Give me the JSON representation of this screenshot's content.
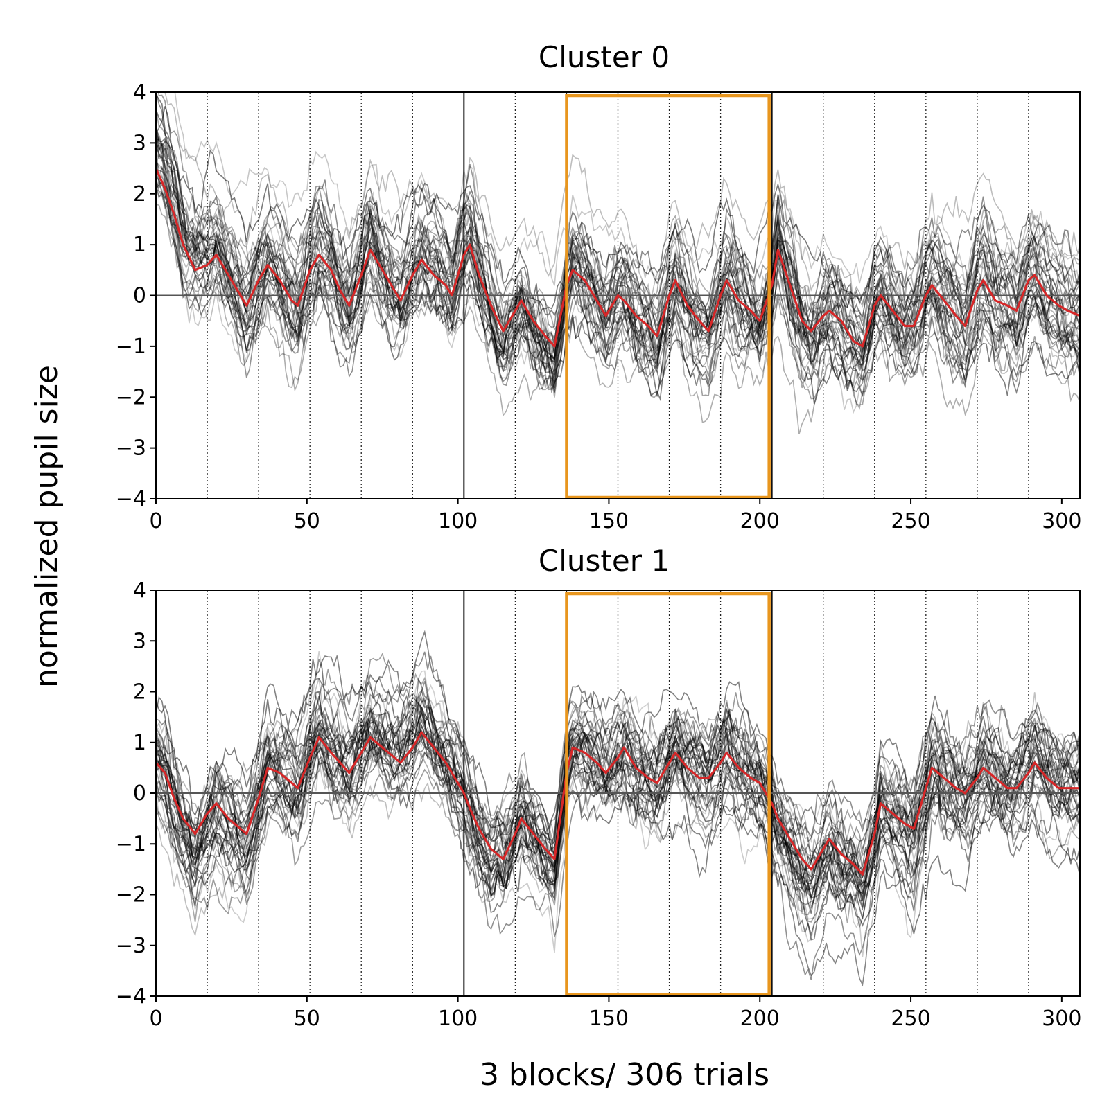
{
  "figure": {
    "ylabel": "normalized pupil size",
    "xlabel": "3 blocks/ 306 trials"
  },
  "colors": {
    "mean_line": "#d62728",
    "trial_lines": "#000000",
    "highlight_box": "#e8961e",
    "zero_line": "#555555"
  },
  "chart_data": [
    {
      "type": "line",
      "title": "Cluster 0",
      "xlim": [
        0,
        306
      ],
      "ylim": [
        -4,
        4
      ],
      "xticks": [
        0,
        50,
        100,
        150,
        200,
        250,
        300
      ],
      "yticks": [
        4,
        3,
        2,
        1,
        0,
        -1,
        -2,
        -3,
        -4
      ],
      "reference_line_y": 0,
      "block_boundaries": [
        102,
        204
      ],
      "sub_block_boundaries": [
        17,
        34,
        51,
        68,
        85,
        119,
        136,
        153,
        170,
        187,
        221,
        238,
        255,
        272,
        289
      ],
      "highlight_range": [
        136,
        204
      ],
      "individual_trace_count": 40,
      "mean_series": {
        "x": [
          0,
          3,
          6,
          9,
          13,
          17,
          20,
          24,
          28,
          30,
          34,
          37,
          41,
          45,
          47,
          51,
          54,
          58,
          61,
          64,
          68,
          71,
          75,
          79,
          81,
          85,
          88,
          92,
          96,
          98,
          102,
          104,
          107,
          111,
          115,
          119,
          121,
          125,
          129,
          132,
          136,
          138,
          142,
          146,
          149,
          153,
          155,
          159,
          163,
          166,
          170,
          172,
          176,
          180,
          183,
          187,
          189,
          193,
          197,
          200,
          204,
          206,
          210,
          214,
          217,
          221,
          223,
          227,
          231,
          234,
          238,
          240,
          244,
          248,
          251,
          255,
          257,
          261,
          265,
          268,
          272,
          274,
          278,
          282,
          285,
          289,
          291,
          295,
          299,
          302,
          306
        ],
        "y": [
          2.5,
          2.1,
          1.6,
          1.0,
          0.5,
          0.6,
          0.8,
          0.4,
          0.0,
          -0.2,
          0.3,
          0.6,
          0.3,
          -0.1,
          -0.2,
          0.5,
          0.8,
          0.5,
          0.1,
          -0.2,
          0.4,
          0.9,
          0.5,
          0.1,
          -0.1,
          0.4,
          0.7,
          0.4,
          0.2,
          0.0,
          0.8,
          1.0,
          0.4,
          -0.2,
          -0.7,
          -0.3,
          -0.1,
          -0.5,
          -0.8,
          -1.0,
          0.2,
          0.5,
          0.3,
          -0.1,
          -0.4,
          0.0,
          -0.1,
          -0.4,
          -0.6,
          -0.8,
          0.0,
          0.3,
          -0.2,
          -0.5,
          -0.7,
          0.0,
          0.3,
          -0.1,
          -0.3,
          -0.5,
          0.2,
          0.9,
          0.2,
          -0.5,
          -0.7,
          -0.4,
          -0.3,
          -0.5,
          -0.9,
          -1.0,
          -0.2,
          0.0,
          -0.3,
          -0.6,
          -0.6,
          0.0,
          0.2,
          -0.1,
          -0.4,
          -0.6,
          0.1,
          0.3,
          -0.1,
          -0.2,
          -0.3,
          0.3,
          0.4,
          0.0,
          -0.2,
          -0.3,
          -0.4
        ]
      }
    },
    {
      "type": "line",
      "title": "Cluster 1",
      "xlim": [
        0,
        306
      ],
      "ylim": [
        -4,
        4
      ],
      "xticks": [
        0,
        50,
        100,
        150,
        200,
        250,
        300
      ],
      "yticks": [
        4,
        3,
        2,
        1,
        0,
        -1,
        -2,
        -3,
        -4
      ],
      "reference_line_y": 0,
      "block_boundaries": [
        102,
        204
      ],
      "sub_block_boundaries": [
        17,
        34,
        51,
        68,
        85,
        119,
        136,
        153,
        170,
        187,
        221,
        238,
        255,
        272,
        289
      ],
      "highlight_range": [
        136,
        204
      ],
      "individual_trace_count": 40,
      "mean_series": {
        "x": [
          0,
          3,
          6,
          9,
          13,
          17,
          20,
          24,
          28,
          30,
          34,
          37,
          41,
          45,
          47,
          51,
          54,
          58,
          61,
          64,
          68,
          71,
          75,
          79,
          81,
          85,
          88,
          92,
          96,
          98,
          102,
          104,
          107,
          111,
          115,
          119,
          121,
          125,
          129,
          132,
          136,
          138,
          142,
          146,
          149,
          153,
          155,
          159,
          163,
          166,
          170,
          172,
          176,
          180,
          183,
          187,
          189,
          193,
          197,
          200,
          204,
          206,
          210,
          214,
          217,
          221,
          223,
          227,
          231,
          234,
          238,
          240,
          244,
          248,
          251,
          255,
          257,
          261,
          265,
          268,
          272,
          274,
          278,
          282,
          285,
          289,
          291,
          295,
          299,
          302,
          306
        ],
        "y": [
          0.6,
          0.4,
          -0.1,
          -0.5,
          -0.8,
          -0.4,
          -0.2,
          -0.5,
          -0.7,
          -0.8,
          -0.1,
          0.5,
          0.4,
          0.2,
          0.1,
          0.7,
          1.1,
          0.8,
          0.6,
          0.4,
          0.8,
          1.1,
          0.9,
          0.7,
          0.6,
          0.9,
          1.2,
          0.9,
          0.6,
          0.4,
          0.0,
          -0.3,
          -0.7,
          -1.1,
          -1.3,
          -0.8,
          -0.5,
          -0.8,
          -1.1,
          -1.3,
          0.4,
          0.9,
          0.8,
          0.6,
          0.4,
          0.7,
          0.9,
          0.5,
          0.3,
          0.2,
          0.6,
          0.8,
          0.5,
          0.3,
          0.3,
          0.6,
          0.8,
          0.5,
          0.3,
          0.2,
          -0.2,
          -0.5,
          -0.9,
          -1.3,
          -1.5,
          -1.1,
          -0.9,
          -1.2,
          -1.4,
          -1.6,
          -0.8,
          -0.2,
          -0.4,
          -0.6,
          -0.7,
          0.1,
          0.5,
          0.3,
          0.1,
          0.0,
          0.3,
          0.5,
          0.3,
          0.1,
          0.1,
          0.4,
          0.6,
          0.3,
          0.1,
          0.1,
          0.1
        ]
      }
    }
  ]
}
